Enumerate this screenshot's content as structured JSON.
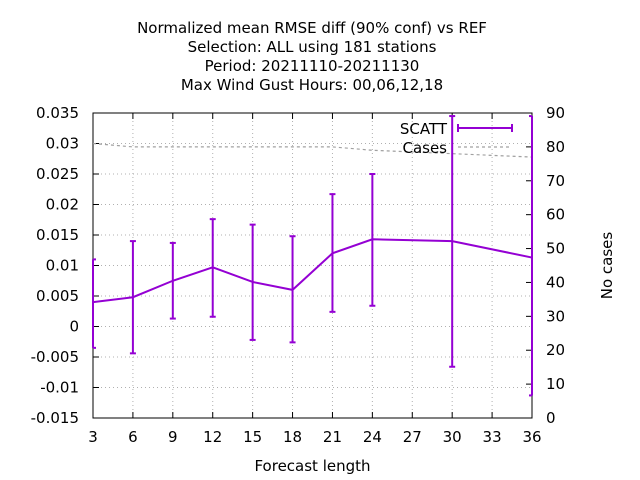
{
  "chart_data": {
    "type": "line",
    "title_lines": [
      "Normalized mean RMSE diff (90% conf) vs REF",
      "Selection: ALL using   181 stations",
      "Period: 20211110-20211130",
      "Max Wind Gust   Hours:  00,06,12,18"
    ],
    "xlabel": "Forecast length",
    "y2label": "No cases",
    "xlim": [
      3,
      36
    ],
    "ylim": [
      -0.015,
      0.035
    ],
    "y2lim": [
      0,
      90
    ],
    "xticks": [
      "3",
      "6",
      "9",
      "12",
      "15",
      "18",
      "21",
      "24",
      "27",
      "30",
      "33",
      "36"
    ],
    "yticks": [
      "-0.015",
      "-0.01",
      "-0.005",
      "0",
      "0.005",
      "0.01",
      "0.015",
      "0.02",
      "0.025",
      "0.03",
      "0.035"
    ],
    "y2ticks": [
      "0",
      "10",
      "20",
      "30",
      "40",
      "50",
      "60",
      "70",
      "80",
      "90"
    ],
    "grid": true,
    "legend_position": "top-right",
    "series": [
      {
        "name": "SCATT",
        "color": "#9400d3",
        "x": [
          3,
          6,
          9,
          12,
          15,
          18,
          21,
          24,
          30,
          36
        ],
        "y": [
          0.004,
          0.0048,
          0.0075,
          0.0097,
          0.0073,
          0.006,
          0.012,
          0.0143,
          0.014,
          0.0113
        ],
        "err_low": [
          -0.0035,
          -0.0044,
          0.0013,
          0.0016,
          -0.0022,
          -0.0026,
          0.0024,
          0.0034,
          -0.0066,
          -0.0113
        ],
        "err_high": [
          0.011,
          0.014,
          0.0137,
          0.0176,
          0.0167,
          0.0148,
          0.0217,
          0.025,
          0.0345,
          0.0345
        ]
      },
      {
        "name": "Cases",
        "color": "#a0a0a0",
        "axis": "y2",
        "x": [
          3,
          6,
          9,
          12,
          15,
          18,
          21,
          24,
          30,
          36
        ],
        "y": [
          81,
          80,
          80,
          80,
          80,
          80,
          80,
          79,
          78,
          77
        ]
      }
    ]
  }
}
